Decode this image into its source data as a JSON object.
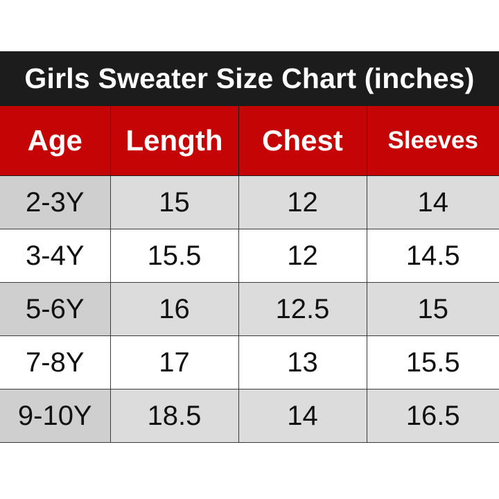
{
  "title": "Girls Sweater Size Chart (inches)",
  "colors": {
    "title_background": "#1c1c1c",
    "header_background": "#c50406",
    "header_text": "#ffffff",
    "shaded_row": "#dcdcdc",
    "plain_row": "#ffffff"
  },
  "table": {
    "headers": [
      "Age",
      "Length",
      "Chest",
      "Sleeves"
    ],
    "rows": [
      [
        "2-3Y",
        "15",
        "12",
        "14"
      ],
      [
        "3-4Y",
        "15.5",
        "12",
        "14.5"
      ],
      [
        "5-6Y",
        "16",
        "12.5",
        "15"
      ],
      [
        "7-8Y",
        "17",
        "13",
        "15.5"
      ],
      [
        "9-10Y",
        "18.5",
        "14",
        "16.5"
      ]
    ]
  }
}
